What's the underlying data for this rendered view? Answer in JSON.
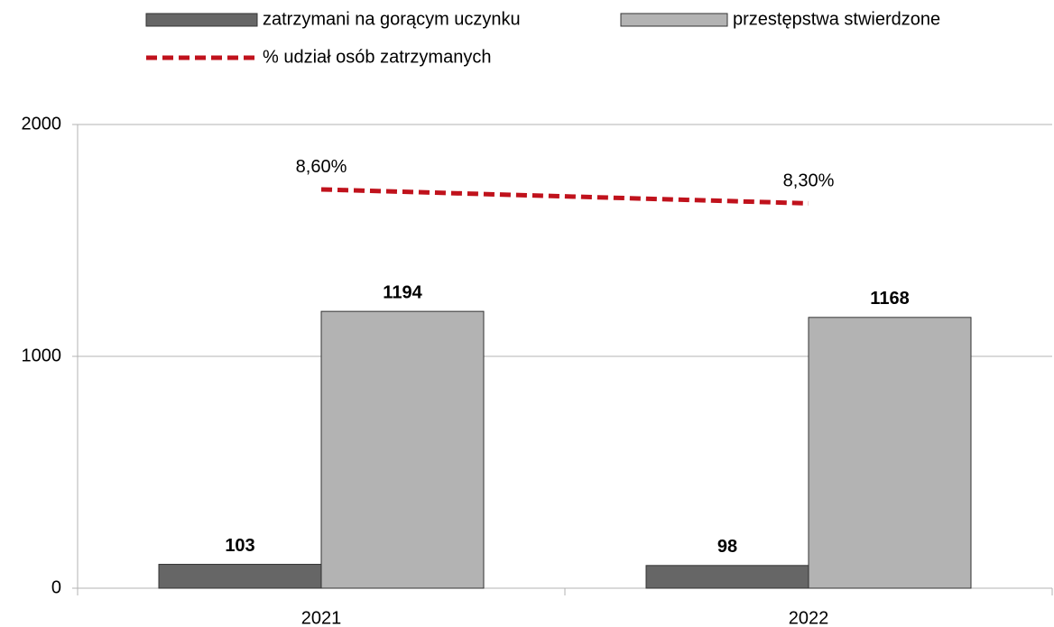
{
  "chart_data": {
    "type": "bar",
    "categories": [
      "2021",
      "2022"
    ],
    "series": [
      {
        "name": "zatrzymani na gorącym uczynku",
        "color": "#666666",
        "values": [
          103,
          98
        ]
      },
      {
        "name": "przestępstwa stwierdzone",
        "color": "#b3b3b3",
        "values": [
          1194,
          1168
        ]
      },
      {
        "name": "% udział osób zatrzymanych",
        "color": "#c0121c",
        "type": "line",
        "axis": "y2",
        "values": [
          8.6,
          8.3
        ],
        "value_labels": [
          "8,60%",
          "8,30%"
        ]
      }
    ],
    "ylim": [
      0,
      2000
    ],
    "yticks": [
      0,
      1000,
      2000
    ],
    "y2lim": [
      0,
      10
    ],
    "grid": true,
    "legend": "top"
  }
}
